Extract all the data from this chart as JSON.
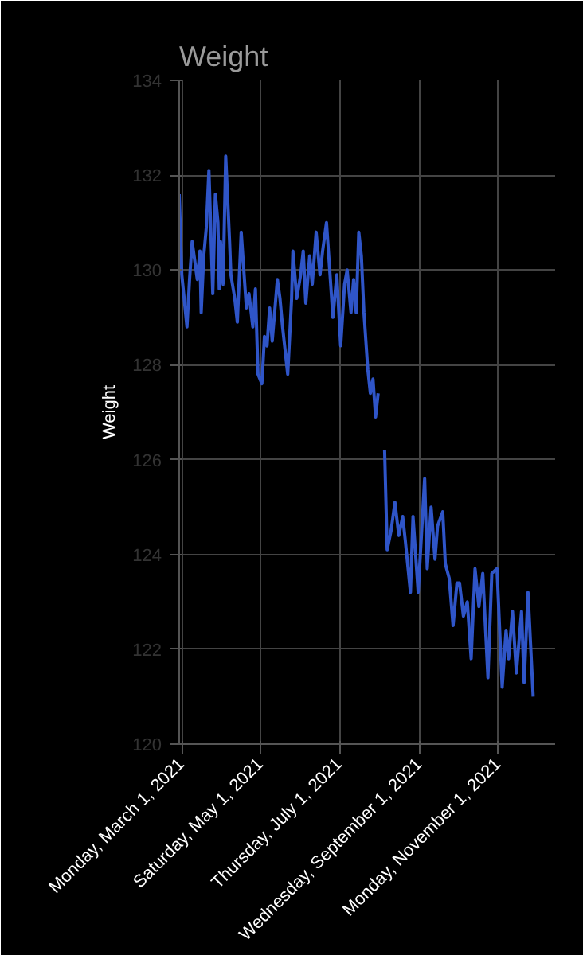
{
  "chart_data": {
    "type": "line",
    "title": "Weight",
    "ylabel": "Weight",
    "x": [
      "2021-02-27",
      "2021-03-01",
      "2021-03-05",
      "2021-03-07",
      "2021-03-09",
      "2021-03-13",
      "2021-03-15",
      "2021-03-16",
      "2021-03-18",
      "2021-03-20",
      "2021-03-22",
      "2021-03-25",
      "2021-03-27",
      "2021-03-29",
      "2021-03-30",
      "2021-03-31",
      "2021-04-02",
      "2021-04-04",
      "2021-04-07",
      "2021-04-08",
      "2021-04-11",
      "2021-04-13",
      "2021-04-16",
      "2021-04-18",
      "2021-04-20",
      "2021-04-22",
      "2021-04-25",
      "2021-04-27",
      "2021-04-29",
      "2021-05-02",
      "2021-05-04",
      "2021-05-06",
      "2021-05-08",
      "2021-05-10",
      "2021-05-14",
      "2021-05-16",
      "2021-05-18",
      "2021-05-22",
      "2021-05-25",
      "2021-05-26",
      "2021-05-29",
      "2021-06-01",
      "2021-06-03",
      "2021-06-05",
      "2021-06-08",
      "2021-06-10",
      "2021-06-13",
      "2021-06-16",
      "2021-06-18",
      "2021-06-21",
      "2021-06-24",
      "2021-06-26",
      "2021-06-29",
      "2021-07-02",
      "2021-07-05",
      "2021-07-07",
      "2021-07-10",
      "2021-07-12",
      "2021-07-14",
      "2021-07-16",
      "2021-07-18",
      "2021-07-20",
      "2021-07-23",
      "2021-07-25",
      "2021-07-27",
      "2021-07-29",
      "2021-07-31",
      "2021-08-03",
      "2021-08-05",
      "2021-08-07",
      "2021-08-10",
      "2021-08-13",
      "2021-08-16",
      "2021-08-19",
      "2021-08-21",
      "2021-08-25",
      "2021-08-27",
      "2021-08-31",
      "2021-09-05",
      "2021-09-07",
      "2021-09-10",
      "2021-09-13",
      "2021-09-15",
      "2021-09-19",
      "2021-09-21",
      "2021-09-24",
      "2021-09-27",
      "2021-09-30",
      "2021-10-02",
      "2021-10-05",
      "2021-10-08",
      "2021-10-11",
      "2021-10-14",
      "2021-10-17",
      "2021-10-20",
      "2021-10-24",
      "2021-10-27",
      "2021-10-31",
      "2021-11-04",
      "2021-11-07",
      "2021-11-09",
      "2021-11-12",
      "2021-11-15",
      "2021-11-19",
      "2021-11-21",
      "2021-11-24",
      "2021-11-28"
    ],
    "series": [
      {
        "color": "#2f55c8",
        "values": [
          131.6,
          129.9,
          128.8,
          129.8,
          130.6,
          129.8,
          130.4,
          129.1,
          130.3,
          130.9,
          132.1,
          129.5,
          131.6,
          131.0,
          129.6,
          130.6,
          129.7,
          132.4,
          130.6,
          129.9,
          129.4,
          128.9,
          130.8,
          130.0,
          129.2,
          129.5,
          128.8,
          129.6,
          127.8,
          127.6,
          128.6,
          128.4,
          129.2,
          128.5,
          129.8,
          129.4,
          128.8,
          127.8,
          129.4,
          130.4,
          129.4,
          129.9,
          130.4,
          129.3,
          130.3,
          129.7,
          130.8,
          129.9,
          130.4,
          131.0,
          129.8,
          129.0,
          129.9,
          128.4,
          129.7,
          130.0,
          129.1,
          129.8,
          129.1,
          130.8,
          130.3,
          129.1,
          127.9,
          127.4,
          127.7,
          126.9,
          127.4,
          null,
          126.2,
          124.1,
          124.5,
          125.1,
          124.4,
          124.8,
          124.3,
          123.2,
          124.8,
          123.2,
          125.6,
          123.7,
          125.0,
          123.9,
          124.6,
          124.9,
          123.8,
          123.5,
          122.5,
          123.4,
          123.4,
          122.7,
          123.0,
          121.8,
          123.7,
          122.9,
          123.6,
          121.4,
          123.6,
          123.7,
          121.2,
          122.4,
          121.8,
          122.8,
          121.5,
          122.8,
          121.3,
          123.2,
          121.0
        ]
      }
    ],
    "xlim": [
      "2021-02-27",
      "2021-12-15"
    ],
    "xticks": [
      {
        "value": "2021-03-01",
        "label": "Monday, March 1, 2021"
      },
      {
        "value": "2021-05-01",
        "label": "Saturday, May 1, 2021"
      },
      {
        "value": "2021-07-01",
        "label": "Thursday, July 1, 2021"
      },
      {
        "value": "2021-09-01",
        "label": "Wednesday, September 1, 2021"
      },
      {
        "value": "2021-11-01",
        "label": "Monday, November 1, 2021"
      }
    ],
    "ylim": [
      120,
      134
    ],
    "yticks": [
      120,
      122,
      124,
      126,
      128,
      130,
      132,
      134
    ],
    "grid": true
  }
}
